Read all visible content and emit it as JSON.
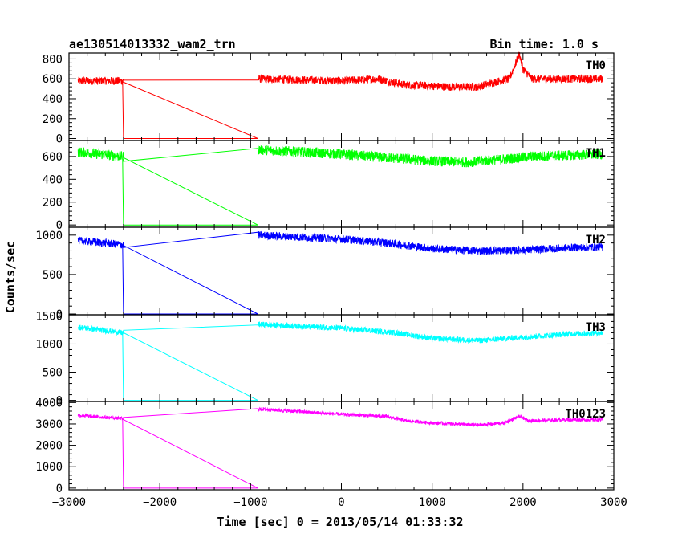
{
  "chart_data": {
    "type": "line",
    "title": "ae130514013332_wam2_trn",
    "bin_time": "Bin time: 1.0 s",
    "xlabel": "Time [sec] 0 = 2013/05/14 01:33:32",
    "ylabel": "Counts/sec",
    "xlim": [
      -3000,
      3000
    ],
    "x_ticks": [
      "−3000",
      "−2000",
      "−1000",
      "0",
      "1000",
      "2000",
      "3000"
    ],
    "grid": false,
    "shared_x": true,
    "gap": {
      "start": -2400,
      "end": -920,
      "value": 0
    },
    "panels": [
      {
        "name": "TH0",
        "color": "#ff0000",
        "ylim": [
          -20,
          860
        ],
        "y_ticks": [
          0,
          200,
          400,
          600,
          800
        ],
        "noise": 40,
        "profile": [
          [
            -2900,
            580
          ],
          [
            -2410,
            580
          ],
          [
            -920,
            600
          ],
          [
            0,
            580
          ],
          [
            400,
            600
          ],
          [
            700,
            540
          ],
          [
            1200,
            520
          ],
          [
            1500,
            520
          ],
          [
            1700,
            570
          ],
          [
            1850,
            600
          ],
          [
            1930,
            780
          ],
          [
            1960,
            850
          ],
          [
            2000,
            700
          ],
          [
            2100,
            600
          ],
          [
            2880,
            600
          ]
        ]
      },
      {
        "name": "TH1",
        "color": "#00ff00",
        "ylim": [
          -20,
          740
        ],
        "y_ticks": [
          0,
          200,
          400,
          600
        ],
        "noise": 45,
        "profile": [
          [
            -2900,
            640
          ],
          [
            -2410,
            600
          ],
          [
            -920,
            660
          ],
          [
            0,
            620
          ],
          [
            500,
            590
          ],
          [
            1000,
            560
          ],
          [
            1400,
            550
          ],
          [
            1700,
            570
          ],
          [
            2100,
            600
          ],
          [
            2880,
            620
          ]
        ]
      },
      {
        "name": "TH2",
        "color": "#0000ff",
        "ylim": [
          -10,
          1100
        ],
        "y_ticks": [
          0,
          500,
          1000
        ],
        "noise": 50,
        "profile": [
          [
            -2900,
            930
          ],
          [
            -2410,
            880
          ],
          [
            -920,
            1000
          ],
          [
            0,
            950
          ],
          [
            500,
            900
          ],
          [
            1000,
            830
          ],
          [
            1500,
            800
          ],
          [
            2000,
            810
          ],
          [
            2500,
            840
          ],
          [
            2880,
            850
          ]
        ]
      },
      {
        "name": "TH3",
        "color": "#00ffff",
        "ylim": [
          -20,
          1520
        ],
        "y_ticks": [
          0,
          500,
          1000,
          1500
        ],
        "noise": 50,
        "profile": [
          [
            -2900,
            1300
          ],
          [
            -2410,
            1200
          ],
          [
            -920,
            1350
          ],
          [
            0,
            1280
          ],
          [
            600,
            1200
          ],
          [
            1000,
            1100
          ],
          [
            1500,
            1060
          ],
          [
            2000,
            1120
          ],
          [
            2500,
            1180
          ],
          [
            2880,
            1200
          ]
        ]
      },
      {
        "name": "TH0123",
        "color": "#ff00ff",
        "ylim": [
          -80,
          4050
        ],
        "y_ticks": [
          0,
          1000,
          2000,
          3000,
          4000
        ],
        "noise": 80,
        "profile": [
          [
            -2900,
            3400
          ],
          [
            -2410,
            3250
          ],
          [
            -920,
            3700
          ],
          [
            0,
            3450
          ],
          [
            500,
            3350
          ],
          [
            700,
            3150
          ],
          [
            1000,
            3050
          ],
          [
            1500,
            2950
          ],
          [
            1800,
            3050
          ],
          [
            1930,
            3300
          ],
          [
            1970,
            3350
          ],
          [
            2050,
            3150
          ],
          [
            2500,
            3200
          ],
          [
            2880,
            3200
          ]
        ]
      }
    ]
  }
}
